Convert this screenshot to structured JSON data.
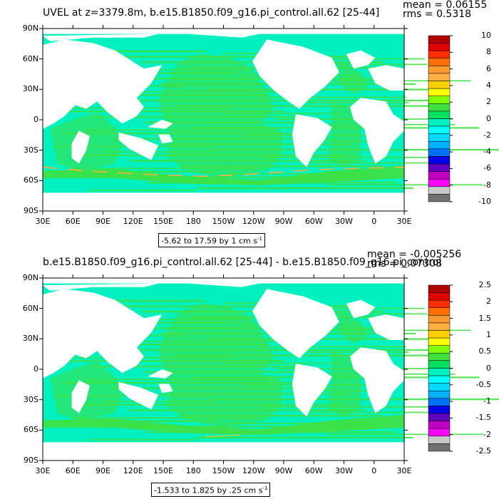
{
  "panels": [
    {
      "id": "top",
      "title": "UVEL at z=3379.8m, b.e15.B1850.f09_g16.pi_control.all.62 [25-44]",
      "mean_text": "mean = 0.06155",
      "rms_text": "rms = 0.5318",
      "range_label": "-5.62 to 17.59 by 1 cm s",
      "range_sup": "-1",
      "colorbar": {
        "labels": [
          "10",
          "8",
          "6",
          "4",
          "2",
          "0",
          "-2",
          "-4",
          "-6",
          "-8",
          "-10"
        ],
        "colors": [
          "#b00000",
          "#e00000",
          "#ff3000",
          "#ff7000",
          "#ff9a30",
          "#ffb040",
          "#ffd000",
          "#ffff00",
          "#80ff00",
          "#40e040",
          "#00e060",
          "#00f0c0",
          "#00ffff",
          "#00d8ff",
          "#00b0ff",
          "#0070ff",
          "#0000e8",
          "#6000c0",
          "#c000c0",
          "#ff00ff",
          "#c8c8c8",
          "#707070"
        ]
      }
    },
    {
      "id": "bottom",
      "title": "b.e15.B1850.f09_g16.pi_control.all.62 [25-44] - b.e15.B1850.f09_g16.pi_control",
      "mean_text": "mean = -0.005256",
      "rms_text": "rms = 0.07308",
      "range_label": "-1.533 to 1.825 by .25 cm s",
      "range_sup": "-1",
      "colorbar": {
        "labels": [
          "2.5",
          "2",
          "1.5",
          "1",
          "0.5",
          "0",
          "-0.5",
          "-1",
          "-1.5",
          "-2",
          "-2.5"
        ],
        "colors": [
          "#b00000",
          "#e00000",
          "#ff3000",
          "#ff7000",
          "#ff9a30",
          "#ffb040",
          "#ffd000",
          "#ffff00",
          "#80ff00",
          "#40e040",
          "#00e060",
          "#00f0c0",
          "#00ffff",
          "#00d8ff",
          "#00b0ff",
          "#0070ff",
          "#0000e8",
          "#6000c0",
          "#c000c0",
          "#ff00ff",
          "#c8c8c8",
          "#707070"
        ]
      }
    }
  ],
  "y_ticks": [
    "90N",
    "60N",
    "30N",
    "0",
    "30S",
    "60S",
    "90S"
  ],
  "x_ticks": [
    "30E",
    "60E",
    "90E",
    "120E",
    "150E",
    "180",
    "150W",
    "120W",
    "90W",
    "60W",
    "30W",
    "0",
    "30E"
  ],
  "colors": {
    "ocean_base": "#00f0c0",
    "ocean_band": "#40e040",
    "land": "#ffffff"
  }
}
